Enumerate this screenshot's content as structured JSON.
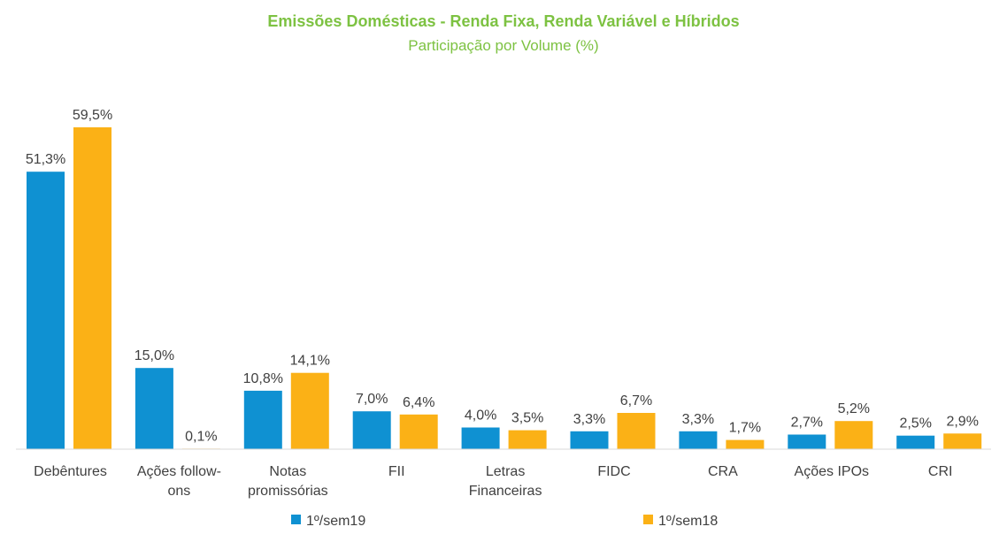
{
  "chart_data": {
    "type": "bar",
    "title": "Emissões Domésticas - Renda Fixa, Renda Variável e Híbridos",
    "subtitle": "Participação por Volume (%)",
    "xlabel": "",
    "ylabel": "",
    "ylim": [
      0,
      62
    ],
    "grid": false,
    "legend_position": "bottom",
    "categories": [
      [
        "Debêntures"
      ],
      [
        "Ações follow-",
        "ons"
      ],
      [
        "Notas",
        "promissórias"
      ],
      [
        "FII"
      ],
      [
        "Letras",
        "Financeiras"
      ],
      [
        "FIDC"
      ],
      [
        "CRA"
      ],
      [
        "Ações IPOs"
      ],
      [
        "CRI"
      ]
    ],
    "series": [
      {
        "name": "1º/sem19",
        "color": "#0f91d2",
        "values": [
          51.3,
          15.0,
          10.8,
          7.0,
          4.0,
          3.3,
          3.3,
          2.7,
          2.5
        ],
        "labels": [
          "51,3%",
          "15,0%",
          "10,8%",
          "7,0%",
          "4,0%",
          "3,3%",
          "3,3%",
          "2,7%",
          "2,5%"
        ]
      },
      {
        "name": "1º/sem18",
        "color": "#fbb116",
        "values": [
          59.5,
          0.1,
          14.1,
          6.4,
          3.5,
          6.7,
          1.7,
          5.2,
          2.9
        ],
        "labels": [
          "59,5%",
          "0,1%",
          "14,1%",
          "6,4%",
          "3,5%",
          "6,7%",
          "1,7%",
          "5,2%",
          "2,9%"
        ]
      }
    ]
  }
}
